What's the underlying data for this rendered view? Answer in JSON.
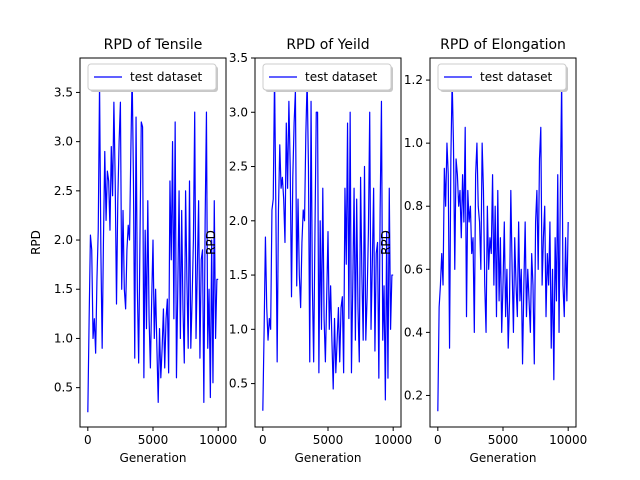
{
  "chart_data": [
    {
      "type": "line",
      "title": "RPD of Tensile",
      "xlabel": "Generation",
      "ylabel": "RPD",
      "xlim": [
        -600,
        10600
      ],
      "ylim": [
        0.1,
        3.85
      ],
      "xticks": [
        0,
        5000,
        10000
      ],
      "yticks": [
        0.5,
        1.0,
        1.5,
        2.0,
        2.5,
        3.0,
        3.5
      ],
      "xtick_labels": [
        "0",
        "5000",
        "10000"
      ],
      "ytick_labels": [
        "0.5",
        "1.0",
        "1.5",
        "2.0",
        "2.5",
        "3.0",
        "3.5"
      ],
      "legend_position": "top-left",
      "grid": false,
      "series": [
        {
          "name": "test dataset",
          "color": "#0000ff",
          "x": [
            0,
            100,
            200,
            300,
            400,
            500,
            600,
            700,
            800,
            900,
            1000,
            1100,
            1200,
            1300,
            1400,
            1500,
            1600,
            1700,
            1800,
            1900,
            2000,
            2100,
            2200,
            2300,
            2400,
            2500,
            2600,
            2700,
            2800,
            2900,
            3000,
            3100,
            3200,
            3300,
            3400,
            3500,
            3600,
            3700,
            3800,
            3900,
            4000,
            4100,
            4200,
            4300,
            4400,
            4500,
            4600,
            4700,
            4800,
            4900,
            5000,
            5100,
            5200,
            5300,
            5400,
            5500,
            5600,
            5700,
            5800,
            5900,
            6000,
            6100,
            6200,
            6300,
            6400,
            6500,
            6600,
            6700,
            6800,
            6900,
            7000,
            7100,
            7200,
            7300,
            7400,
            7500,
            7600,
            7700,
            7800,
            7900,
            8000,
            8100,
            8200,
            8300,
            8400,
            8500,
            8600,
            8700,
            8800,
            8900,
            9000,
            9100,
            9200,
            9300,
            9400,
            9500,
            9600,
            9700,
            9800,
            9900,
            10000
          ],
          "values": [
            0.25,
            1.2,
            2.05,
            1.9,
            1.0,
            1.2,
            0.85,
            1.6,
            2.1,
            3.6,
            1.9,
            0.9,
            2.0,
            2.9,
            2.2,
            2.7,
            2.6,
            2.1,
            2.95,
            2.45,
            3.4,
            2.6,
            1.35,
            2.4,
            3.0,
            3.4,
            1.5,
            2.3,
            1.5,
            1.3,
            1.9,
            2.15,
            2.0,
            2.9,
            3.7,
            2.6,
            0.8,
            3.25,
            1.5,
            0.75,
            2.0,
            3.2,
            3.15,
            0.6,
            2.1,
            1.1,
            2.4,
            1.2,
            0.7,
            1.4,
            2.0,
            1.0,
            1.5,
            0.9,
            0.35,
            1.1,
            0.6,
            0.9,
            1.3,
            0.7,
            1.2,
            1.4,
            0.65,
            2.6,
            1.8,
            3.0,
            1.2,
            3.2,
            0.6,
            1.5,
            2.5,
            1.0,
            2.3,
            1.3,
            0.75,
            2.5,
            1.6,
            0.9,
            2.6,
            0.9,
            1.4,
            2.0,
            3.3,
            1.0,
            1.7,
            2.4,
            0.8,
            1.8,
            1.9,
            0.35,
            2.2,
            3.3,
            0.9,
            1.5,
            0.4,
            2.0,
            0.55,
            2.4,
            1.0,
            1.6,
            1.6
          ]
        }
      ]
    },
    {
      "type": "line",
      "title": "RPD of Yeild",
      "xlabel": "Generation",
      "ylabel": "RPD",
      "xlim": [
        -600,
        10600
      ],
      "ylim": [
        0.1,
        3.5
      ],
      "xticks": [
        0,
        5000,
        10000
      ],
      "yticks": [
        0.5,
        1.0,
        1.5,
        2.0,
        2.5,
        3.0,
        3.5
      ],
      "xtick_labels": [
        "0",
        "5000",
        "10000"
      ],
      "ytick_labels": [
        "0.5",
        "1.0",
        "1.5",
        "2.0",
        "2.5",
        "3.0",
        "3.5"
      ],
      "legend_position": "top-left",
      "grid": false,
      "series": [
        {
          "name": "test dataset",
          "color": "#0000ff",
          "x": [
            0,
            100,
            200,
            300,
            400,
            500,
            600,
            700,
            800,
            900,
            1000,
            1100,
            1200,
            1300,
            1400,
            1500,
            1600,
            1700,
            1800,
            1900,
            2000,
            2100,
            2200,
            2300,
            2400,
            2500,
            2600,
            2700,
            2800,
            2900,
            3000,
            3100,
            3200,
            3300,
            3400,
            3500,
            3600,
            3700,
            3800,
            3900,
            4000,
            4100,
            4200,
            4300,
            4400,
            4500,
            4600,
            4700,
            4800,
            4900,
            5000,
            5100,
            5200,
            5300,
            5400,
            5500,
            5600,
            5700,
            5800,
            5900,
            6000,
            6100,
            6200,
            6300,
            6400,
            6500,
            6600,
            6700,
            6800,
            6900,
            7000,
            7100,
            7200,
            7300,
            7400,
            7500,
            7600,
            7700,
            7800,
            7900,
            8000,
            8100,
            8200,
            8300,
            8400,
            8500,
            8600,
            8700,
            8800,
            8900,
            9000,
            9100,
            9200,
            9300,
            9400,
            9500,
            9600,
            9700,
            9800,
            9900,
            10000
          ],
          "values": [
            0.25,
            1.0,
            1.85,
            1.2,
            0.9,
            1.1,
            1.0,
            2.1,
            2.2,
            3.35,
            2.1,
            0.7,
            2.1,
            2.7,
            2.3,
            2.4,
            2.2,
            1.8,
            2.9,
            2.3,
            3.1,
            2.5,
            1.3,
            2.4,
            2.9,
            3.2,
            1.4,
            2.2,
            1.5,
            1.2,
            1.8,
            2.1,
            2.0,
            2.8,
            3.3,
            2.5,
            0.7,
            3.1,
            1.4,
            0.7,
            1.9,
            3.0,
            3.0,
            0.6,
            2.0,
            1.0,
            2.3,
            1.1,
            0.7,
            1.3,
            1.9,
            1.0,
            1.4,
            0.9,
            0.45,
            1.1,
            0.6,
            0.9,
            1.2,
            0.7,
            1.2,
            1.3,
            0.6,
            2.3,
            1.6,
            2.9,
            1.1,
            3.0,
            0.6,
            1.4,
            2.3,
            0.9,
            2.2,
            1.2,
            0.7,
            2.4,
            1.5,
            0.9,
            2.5,
            0.9,
            1.3,
            1.9,
            3.0,
            1.0,
            1.6,
            2.3,
            0.8,
            1.7,
            1.8,
            0.55,
            2.1,
            3.1,
            0.9,
            1.4,
            0.35,
            1.9,
            0.55,
            2.3,
            1.0,
            1.5,
            1.5
          ]
        }
      ]
    },
    {
      "type": "line",
      "title": "RPD of Elongation",
      "xlabel": "Generation",
      "ylabel": "RPD",
      "xlim": [
        -600,
        10600
      ],
      "ylim": [
        0.1,
        1.27
      ],
      "xticks": [
        0,
        5000,
        10000
      ],
      "yticks": [
        0.2,
        0.4,
        0.6,
        0.8,
        1.0,
        1.2
      ],
      "xtick_labels": [
        "0",
        "5000",
        "10000"
      ],
      "ytick_labels": [
        "0.2",
        "0.4",
        "0.6",
        "0.8",
        "1.0",
        "1.2"
      ],
      "legend_position": "top-left",
      "grid": false,
      "series": [
        {
          "name": "test dataset",
          "color": "#0000ff",
          "x": [
            0,
            100,
            200,
            300,
            400,
            500,
            600,
            700,
            800,
            900,
            1000,
            1100,
            1200,
            1300,
            1400,
            1500,
            1600,
            1700,
            1800,
            1900,
            2000,
            2100,
            2200,
            2300,
            2400,
            2500,
            2600,
            2700,
            2800,
            2900,
            3000,
            3100,
            3200,
            3300,
            3400,
            3500,
            3600,
            3700,
            3800,
            3900,
            4000,
            4100,
            4200,
            4300,
            4400,
            4500,
            4600,
            4700,
            4800,
            4900,
            5000,
            5100,
            5200,
            5300,
            5400,
            5500,
            5600,
            5700,
            5800,
            5900,
            6000,
            6100,
            6200,
            6300,
            6400,
            6500,
            6600,
            6700,
            6800,
            6900,
            7000,
            7100,
            7200,
            7300,
            7400,
            7500,
            7600,
            7700,
            7800,
            7900,
            8000,
            8100,
            8200,
            8300,
            8400,
            8500,
            8600,
            8700,
            8800,
            8900,
            9000,
            9100,
            9200,
            9300,
            9400,
            9500,
            9600,
            9700,
            9800,
            9900,
            10000
          ],
          "values": [
            0.15,
            0.48,
            0.55,
            0.65,
            0.55,
            0.92,
            0.8,
            1.0,
            0.9,
            0.35,
            0.95,
            1.2,
            1.0,
            0.6,
            0.95,
            0.9,
            0.8,
            0.85,
            0.7,
            0.9,
            0.75,
            1.05,
            0.45,
            0.85,
            0.75,
            0.8,
            0.65,
            0.7,
            0.4,
            0.9,
            1.0,
            0.8,
            0.75,
            0.6,
            1.0,
            0.85,
            0.55,
            0.4,
            0.8,
            0.6,
            0.7,
            0.65,
            0.9,
            0.55,
            0.8,
            0.45,
            0.85,
            0.5,
            0.7,
            0.4,
            0.55,
            0.75,
            0.45,
            0.6,
            0.35,
            0.5,
            0.85,
            0.6,
            0.4,
            0.7,
            0.55,
            0.45,
            0.75,
            0.5,
            0.6,
            0.3,
            0.55,
            0.75,
            0.45,
            0.6,
            0.5,
            0.4,
            0.65,
            0.55,
            0.3,
            0.75,
            0.85,
            0.6,
            0.95,
            1.05,
            0.55,
            0.7,
            0.8,
            0.45,
            0.65,
            0.55,
            0.75,
            0.35,
            0.6,
            0.25,
            0.7,
            0.5,
            0.9,
            0.4,
            0.85,
            1.2,
            0.55,
            0.45,
            0.7,
            0.5,
            0.75
          ]
        }
      ]
    }
  ]
}
